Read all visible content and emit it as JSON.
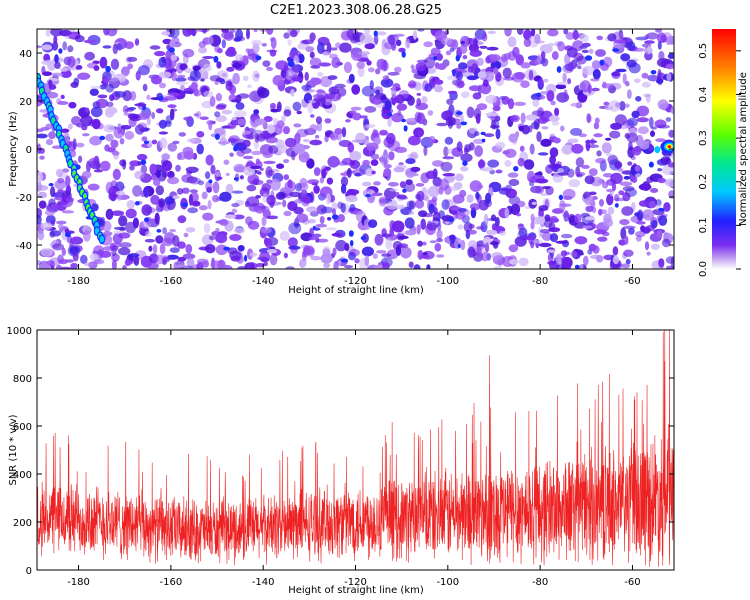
{
  "title": "C2E1.2023.308.06.28.G25",
  "colors": {
    "snr_line": "#ee2222",
    "axis": "#000000"
  },
  "chart_data": [
    {
      "type": "heatmap",
      "xlabel": "Height of straight line (km)",
      "ylabel": "Frequency (Hz)",
      "xlim": [
        -189,
        -51
      ],
      "ylim": [
        -50,
        50
      ],
      "xticks": [
        "-180",
        "-160",
        "-140",
        "-120",
        "-100",
        "-80",
        "-60"
      ],
      "yticks": [
        "-40",
        "-20",
        "0",
        "20",
        "40"
      ],
      "colorbar": {
        "label": "Normalized spectral amplitude",
        "range": [
          0,
          0.55
        ],
        "ticks": [
          "0.0",
          "0.1",
          "0.2",
          "0.3",
          "0.4",
          "0.5"
        ]
      },
      "features": [
        {
          "name": "diagonal streak",
          "x_range": [
            -189,
            -175
          ],
          "y_range": [
            30,
            -38
          ],
          "peak_amplitude": 0.25
        },
        {
          "name": "bright spot",
          "x": -52,
          "y": 1,
          "peak_amplitude": 0.5
        }
      ]
    },
    {
      "type": "line",
      "xlabel": "Height of straight line (km)",
      "ylabel": "SNR (10 * v/v)",
      "xlim": [
        -189,
        -51
      ],
      "ylim": [
        0,
        1000
      ],
      "xticks": [
        "-180",
        "-160",
        "-140",
        "-120",
        "-100",
        "-80",
        "-60"
      ],
      "yticks": [
        "0",
        "200",
        "400",
        "600",
        "800",
        "1000"
      ],
      "trend": {
        "x": [
          -189,
          -180,
          -170,
          -160,
          -150,
          -140,
          -130,
          -120,
          -110,
          -100,
          -90,
          -80,
          -70,
          -60,
          -52
        ],
        "center": [
          220,
          210,
          190,
          170,
          160,
          175,
          190,
          205,
          215,
          230,
          240,
          250,
          265,
          280,
          310
        ],
        "spread": [
          140,
          150,
          140,
          130,
          125,
          130,
          140,
          150,
          165,
          180,
          200,
          210,
          220,
          240,
          300
        ]
      },
      "peaks": [
        {
          "x": -91,
          "y": 895
        },
        {
          "x": -53,
          "y": 1000
        },
        {
          "x": -52,
          "y": 1000
        }
      ]
    }
  ]
}
